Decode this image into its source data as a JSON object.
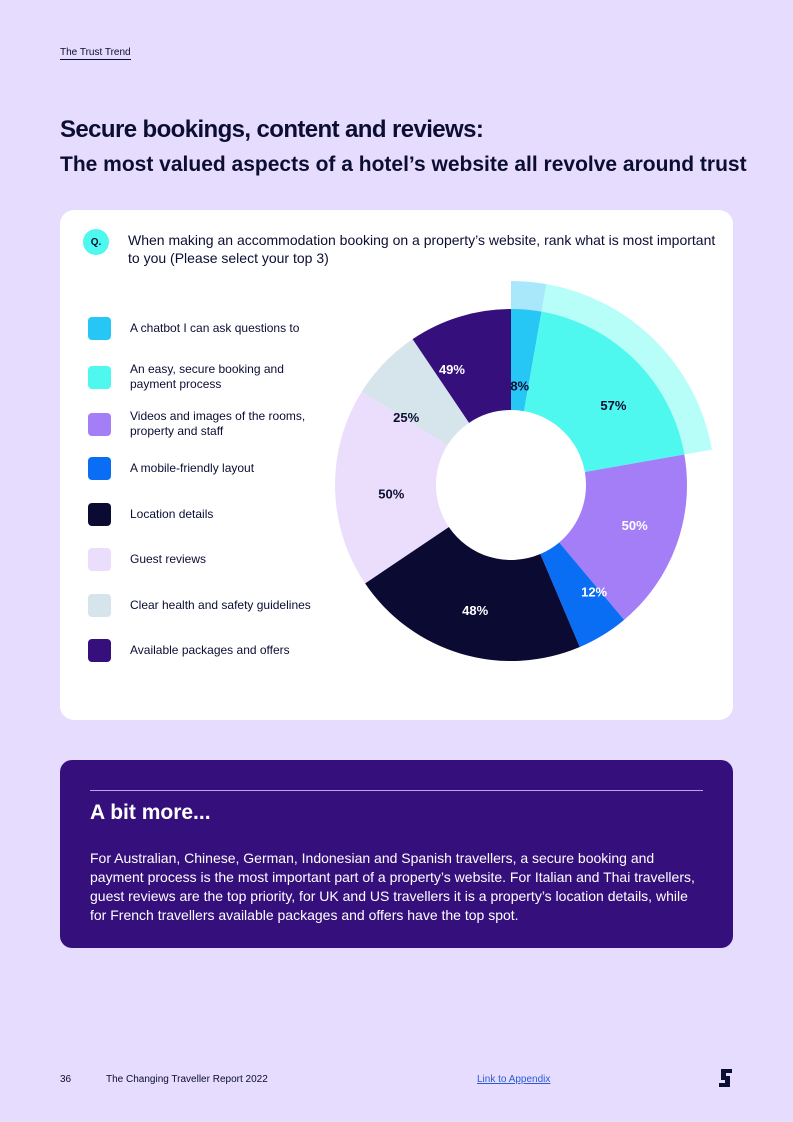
{
  "header": {
    "tag": "The Trust Trend"
  },
  "title": "Secure bookings, content and reviews:",
  "subtitle": "The most valued aspects of a hotel’s website all revolve around trust",
  "question": {
    "badge": "Q.",
    "text": "When making an accommodation booking on a property’s website, rank what is most important to you (Please select your top 3)"
  },
  "chart_data": {
    "type": "pie",
    "variant": "polar-donut",
    "categories": [
      "A chatbot I can ask questions to",
      "An easy, secure booking and payment process",
      "Videos and images of the rooms, property and staff",
      "A mobile-friendly layout",
      "Location details",
      "Guest reviews",
      "Clear health and safety guidelines",
      "Available packages and offers"
    ],
    "values": [
      8,
      57,
      50,
      12,
      48,
      50,
      25,
      49
    ],
    "value_labels": [
      "8%",
      "57%",
      "50%",
      "12%",
      "48%",
      "50%",
      "25%",
      "49%"
    ],
    "colors": [
      "#26c6f5",
      "#4ff8ee",
      "#a37ef7",
      "#0a6ef5",
      "#0b0a33",
      "#ebdefd",
      "#d6e4ec",
      "#35107d"
    ],
    "outer_ring_colors": [
      "#a9e8fb",
      "#b7fdf8"
    ],
    "label_colors": [
      "#0b0d33",
      "#0b0d33",
      "#ffffff",
      "#ffffff",
      "#ffffff",
      "#0b0d33",
      "#0b0d33",
      "#ffffff"
    ],
    "legend_position": "left"
  },
  "more": {
    "title": "A bit more...",
    "text": "For Australian, Chinese, German, Indonesian and Spanish travellers, a secure booking and payment process is the most important part of a property’s website. For Italian and Thai travellers, guest reviews are the top priority, for UK and US travellers it is a property’s location details, while for French travellers available packages and offers have the top spot."
  },
  "footer": {
    "page": "36",
    "report": "The Changing Traveller Report 2022",
    "link": "Link to Appendix"
  }
}
